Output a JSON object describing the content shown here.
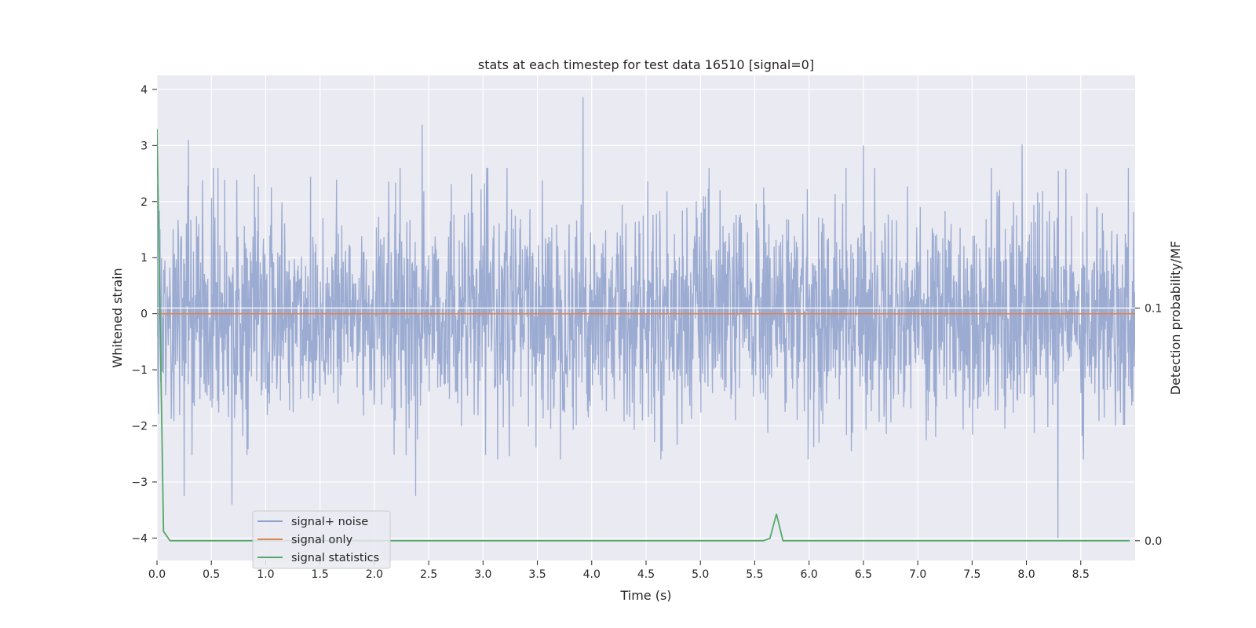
{
  "chart_data": {
    "type": "line",
    "title": "stats at each timestep for test data 16510 [signal=0]",
    "xlabel": "Time (s)",
    "ylabel": "Whitened strain",
    "ylabel_right": "Detection probability/MF",
    "xlim": [
      0,
      9.0
    ],
    "ylim": [
      -4.4,
      4.25
    ],
    "ylim_right": [
      -0.0085,
      0.2
    ],
    "x_ticks": [
      0,
      0.5,
      1,
      1.5,
      2,
      2.5,
      3,
      3.5,
      4,
      4.5,
      5,
      5.5,
      6,
      6.5,
      7,
      7.5,
      8,
      8.5
    ],
    "x_tick_labels": [
      "0.0",
      "0.5",
      "1.0",
      "1.5",
      "2.0",
      "2.5",
      "3.0",
      "3.5",
      "4.0",
      "4.5",
      "5.0",
      "5.5",
      "6.0",
      "6.5",
      "7.0",
      "7.5",
      "8.0",
      "8.5"
    ],
    "y_ticks": [
      4,
      3,
      2,
      1,
      0,
      -1,
      -2,
      -3,
      -4
    ],
    "y_tick_labels": [
      "4",
      "3",
      "2",
      "1",
      "0",
      "−1",
      "−2",
      "−3",
      "−4"
    ],
    "y_ticks_right": [
      0.1,
      0.0
    ],
    "y_tick_labels_right": [
      "0.1",
      "0.0"
    ],
    "grid": true,
    "legend_position": "lower-left",
    "series": [
      {
        "name": "signal+ noise",
        "axis": "left",
        "color": "#8da0cb",
        "note": "whitened noise, values mostly within [-2.5, 2.5]",
        "peaks": [
          {
            "x": 0.29,
            "y": 3.1
          },
          {
            "x": 2.44,
            "y": 3.37
          },
          {
            "x": 3.92,
            "y": 3.86
          },
          {
            "x": 6.5,
            "y": 3.0
          },
          {
            "x": 7.96,
            "y": 3.02
          },
          {
            "x": 0.25,
            "y": -3.25
          },
          {
            "x": 0.69,
            "y": -3.4
          },
          {
            "x": 2.38,
            "y": -3.25
          },
          {
            "x": 8.29,
            "y": -4.0
          }
        ]
      },
      {
        "name": "signal only",
        "axis": "left",
        "color": "#dd8452",
        "x": [
          0,
          9.0
        ],
        "y": [
          0,
          0
        ]
      },
      {
        "name": "signal statistics",
        "axis": "right",
        "color": "#55a868",
        "x": [
          0.0,
          0.06,
          0.12,
          5.5,
          5.58,
          5.64,
          5.7,
          5.76,
          5.82,
          8.95
        ],
        "y": [
          0.177,
          0.004,
          0.0,
          0.0,
          0.0,
          0.001,
          0.0115,
          0.0,
          0.0,
          0.0
        ]
      }
    ]
  }
}
